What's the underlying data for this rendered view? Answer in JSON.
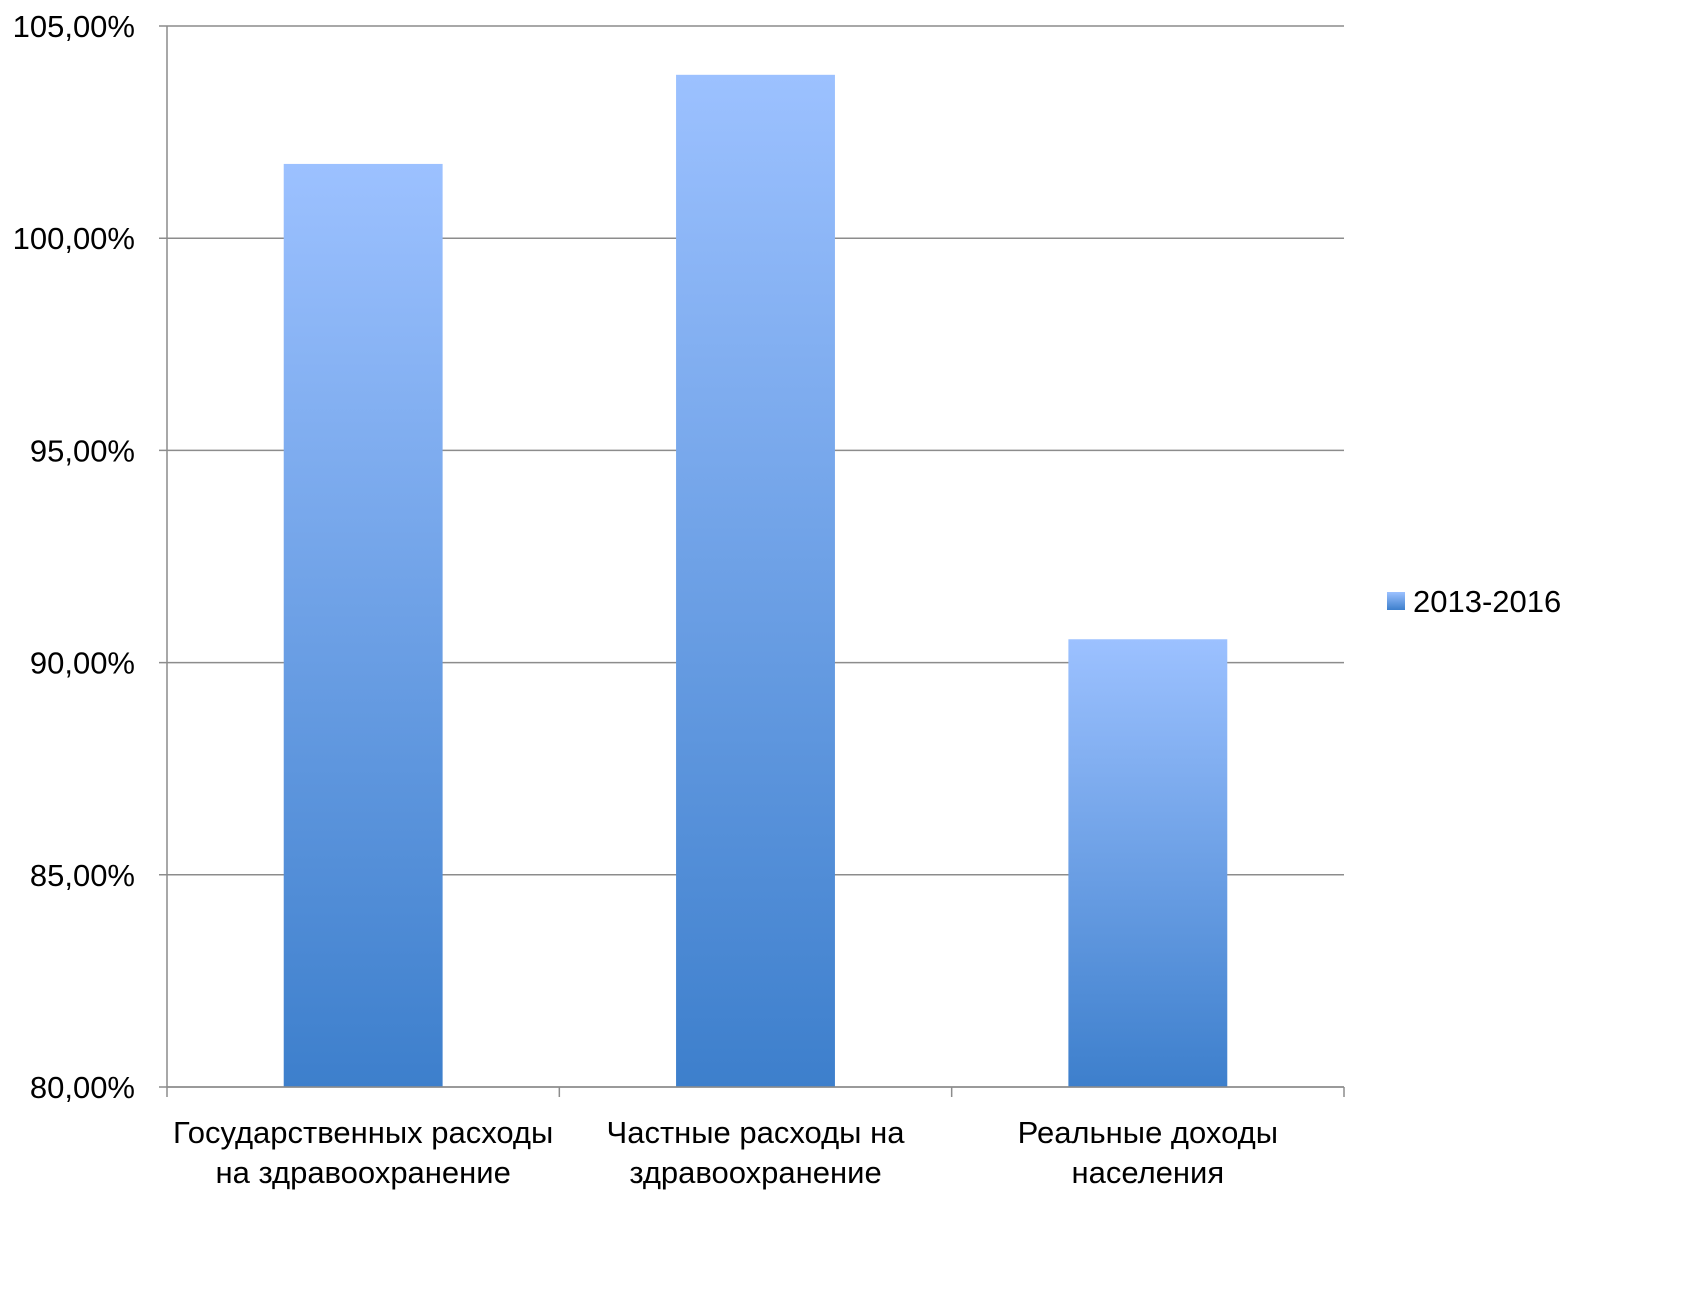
{
  "chart_data": {
    "type": "bar",
    "title": "",
    "xlabel": "",
    "ylabel": "",
    "categories": [
      [
        "Государственных расходы",
        "на здравоохранение"
      ],
      [
        "Частные расходы на",
        "здравоохранение"
      ],
      [
        "Реальные доходы",
        "населения"
      ]
    ],
    "series": [
      {
        "name": "2013-2016",
        "values": [
          101.75,
          103.85,
          90.55
        ],
        "color_top": "#9cc1ff",
        "color_bottom": "#3d7fcc"
      }
    ],
    "ylim": [
      80,
      105
    ],
    "yticks": [
      80,
      85,
      90,
      95,
      100,
      105
    ],
    "ytick_labels": [
      "80,00%",
      "85,00%",
      "90,00%",
      "95,00%",
      "100,00%",
      "105,00%"
    ],
    "grid": true,
    "legend_position": "right"
  }
}
